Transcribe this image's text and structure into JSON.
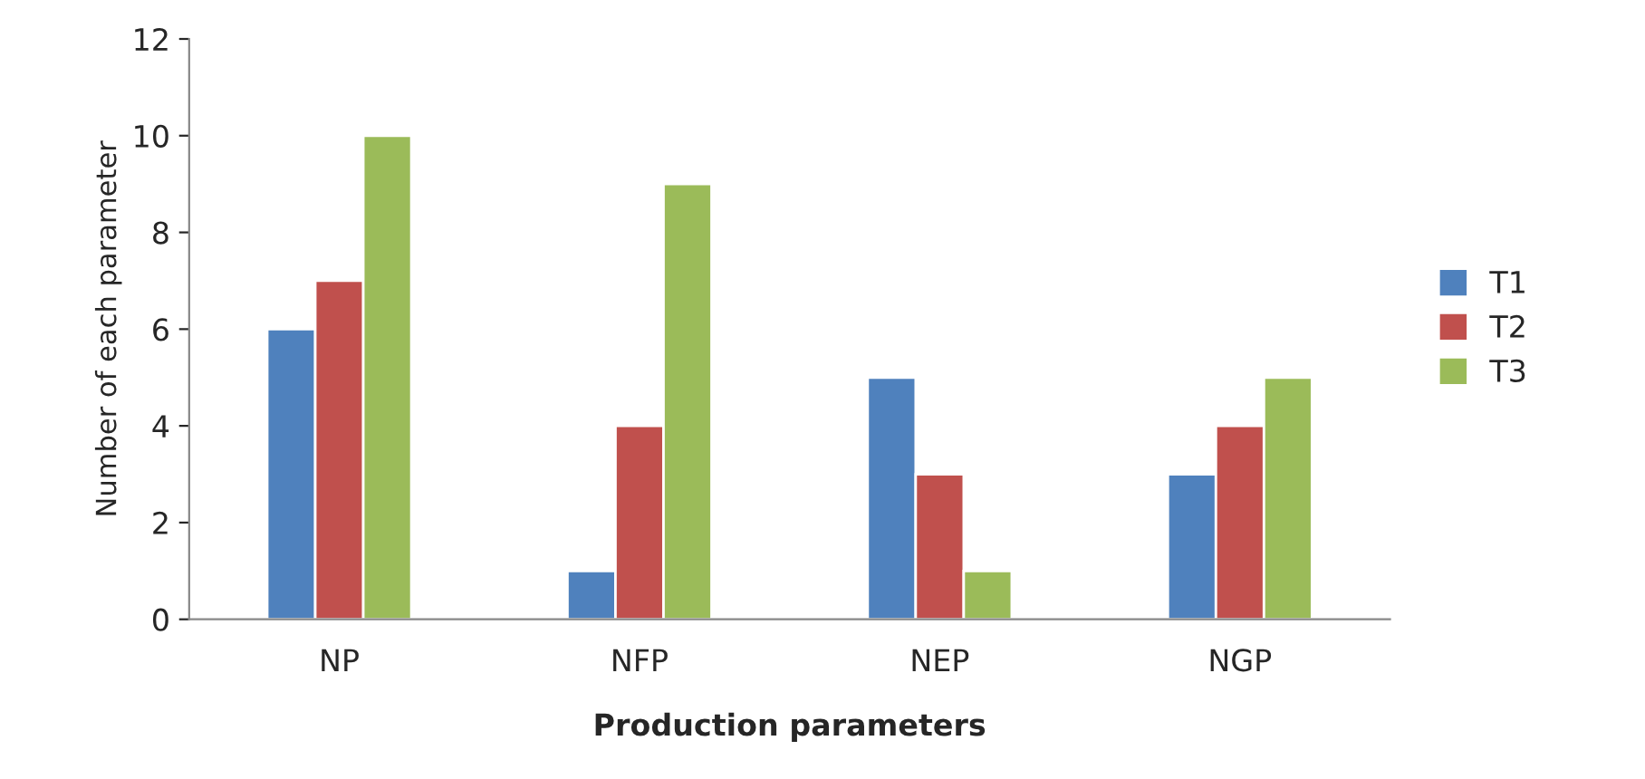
{
  "chart_data": {
    "type": "bar",
    "xlabel": "Production parameters",
    "ylabel": "Number of each parameter",
    "categories": [
      "NP",
      "NFP",
      "NEP",
      "NGP"
    ],
    "series": [
      {
        "name": "T1",
        "color": "#4f81bd",
        "values": [
          6,
          1,
          5,
          3
        ]
      },
      {
        "name": "T2",
        "color": "#c0504d",
        "values": [
          7,
          4,
          3,
          4
        ]
      },
      {
        "name": "T3",
        "color": "#9bbb59",
        "values": [
          10,
          9,
          1,
          5
        ]
      }
    ],
    "ylim": [
      0,
      12
    ],
    "yticks": [
      0,
      2,
      4,
      6,
      8,
      10,
      12
    ],
    "grid": false,
    "legend": "right"
  }
}
